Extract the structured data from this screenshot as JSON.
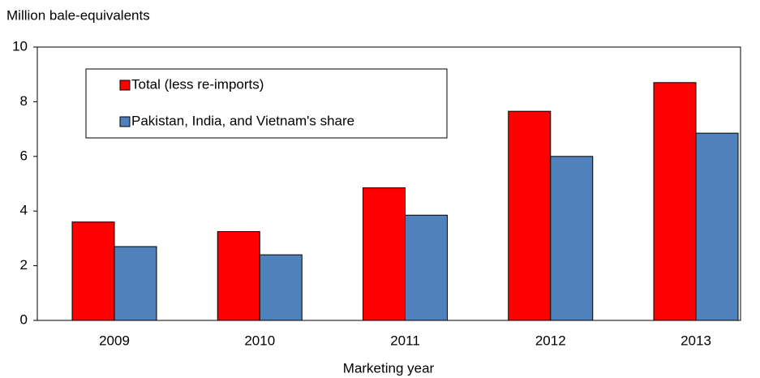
{
  "chart_data": {
    "type": "bar",
    "y_label": "Million bale-equivalents",
    "x_label": "Marketing year",
    "categories": [
      "2009",
      "2010",
      "2011",
      "2012",
      "2013"
    ],
    "series": [
      {
        "name": "Total (less re-imports)",
        "color": "#ff0000",
        "values": [
          3.6,
          3.25,
          4.85,
          7.65,
          8.7
        ]
      },
      {
        "name": "Pakistan, India, and Vietnam's share",
        "color": "#4f81bd",
        "values": [
          2.7,
          2.4,
          3.85,
          6.0,
          6.85
        ]
      }
    ],
    "ylim": [
      0,
      10
    ],
    "yticks": [
      0,
      2,
      4,
      6,
      8,
      10
    ],
    "grid": false
  }
}
